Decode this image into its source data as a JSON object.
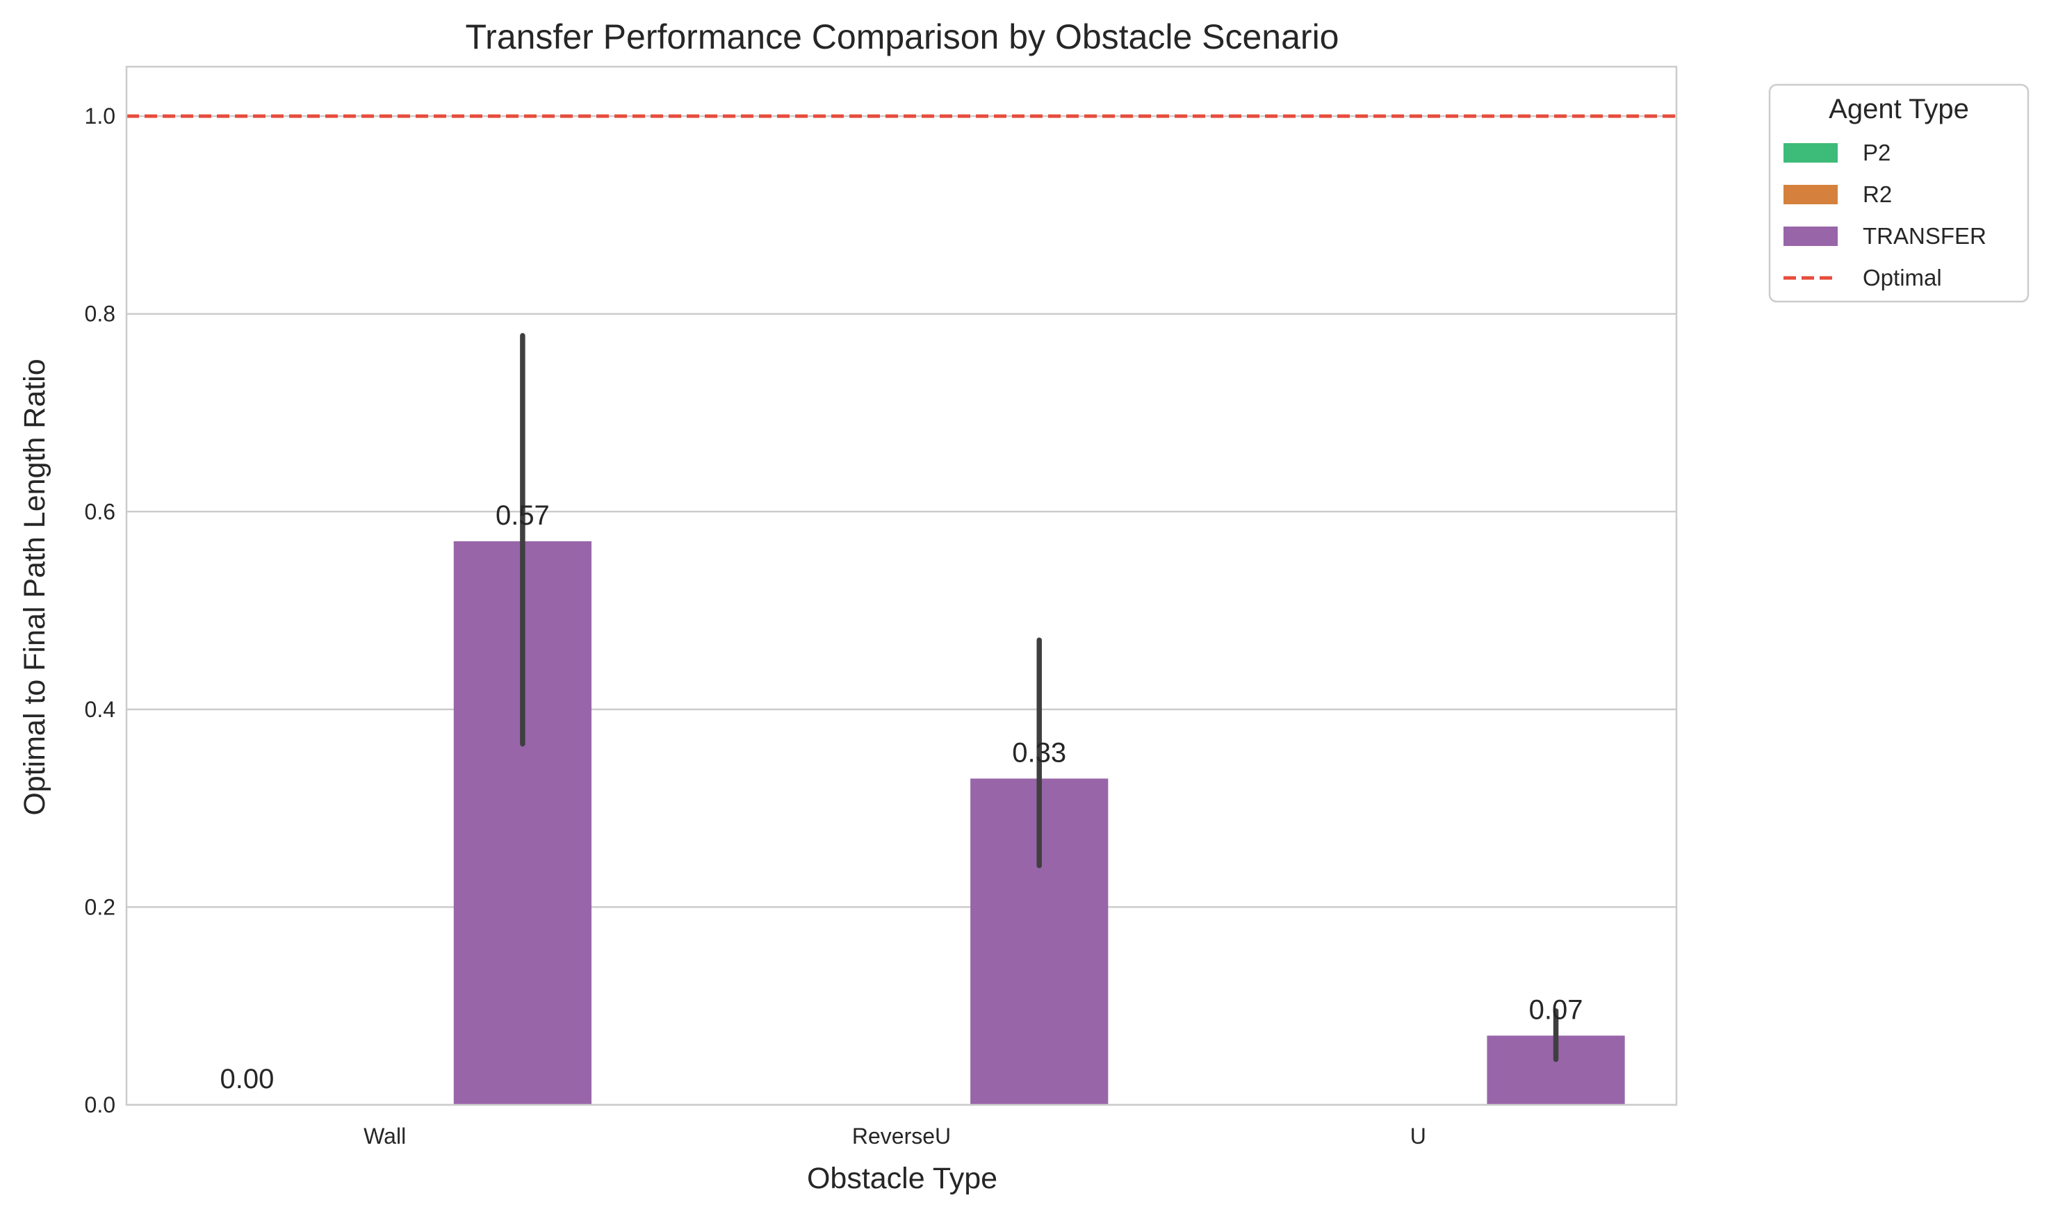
{
  "chart_data": {
    "type": "bar",
    "title": "Transfer Performance Comparison by Obstacle Scenario",
    "xlabel": "Obstacle Type",
    "ylabel": "Optimal to Final Path Length Ratio",
    "categories": [
      "Wall",
      "ReverseU",
      "U"
    ],
    "ylim": [
      0,
      1.05
    ],
    "yticks": [
      0.0,
      0.2,
      0.4,
      0.6,
      0.8,
      1.0
    ],
    "ytick_labels": [
      "0.0",
      "0.2",
      "0.4",
      "0.6",
      "0.8",
      "1.0"
    ],
    "grid": "horizontal",
    "series": [
      {
        "name": "P2",
        "color": "#3dbb78",
        "values": [
          0,
          null,
          null
        ],
        "error": [
          [
            0,
            0
          ],
          null,
          null
        ],
        "labels": [
          "0.00",
          "",
          ""
        ]
      },
      {
        "name": "R2",
        "color": "#d5813d",
        "values": [
          null,
          null,
          null
        ],
        "error": [
          null,
          null,
          null
        ],
        "labels": [
          "",
          "",
          ""
        ]
      },
      {
        "name": "TRANSFER",
        "color": "#9965a9",
        "values": [
          0.57,
          0.33,
          0.07
        ],
        "error": [
          [
            0.365,
            0.778
          ],
          [
            0.242,
            0.47
          ],
          [
            0.046,
            0.095
          ]
        ],
        "labels": [
          "0.57",
          "0.33",
          "0.07"
        ]
      }
    ],
    "reference_line": {
      "name": "Optimal",
      "value": 1.0,
      "color": "#e74c3c",
      "style": "dashed"
    },
    "legend": {
      "title": "Agent Type",
      "placement": "outside-top-right"
    }
  }
}
